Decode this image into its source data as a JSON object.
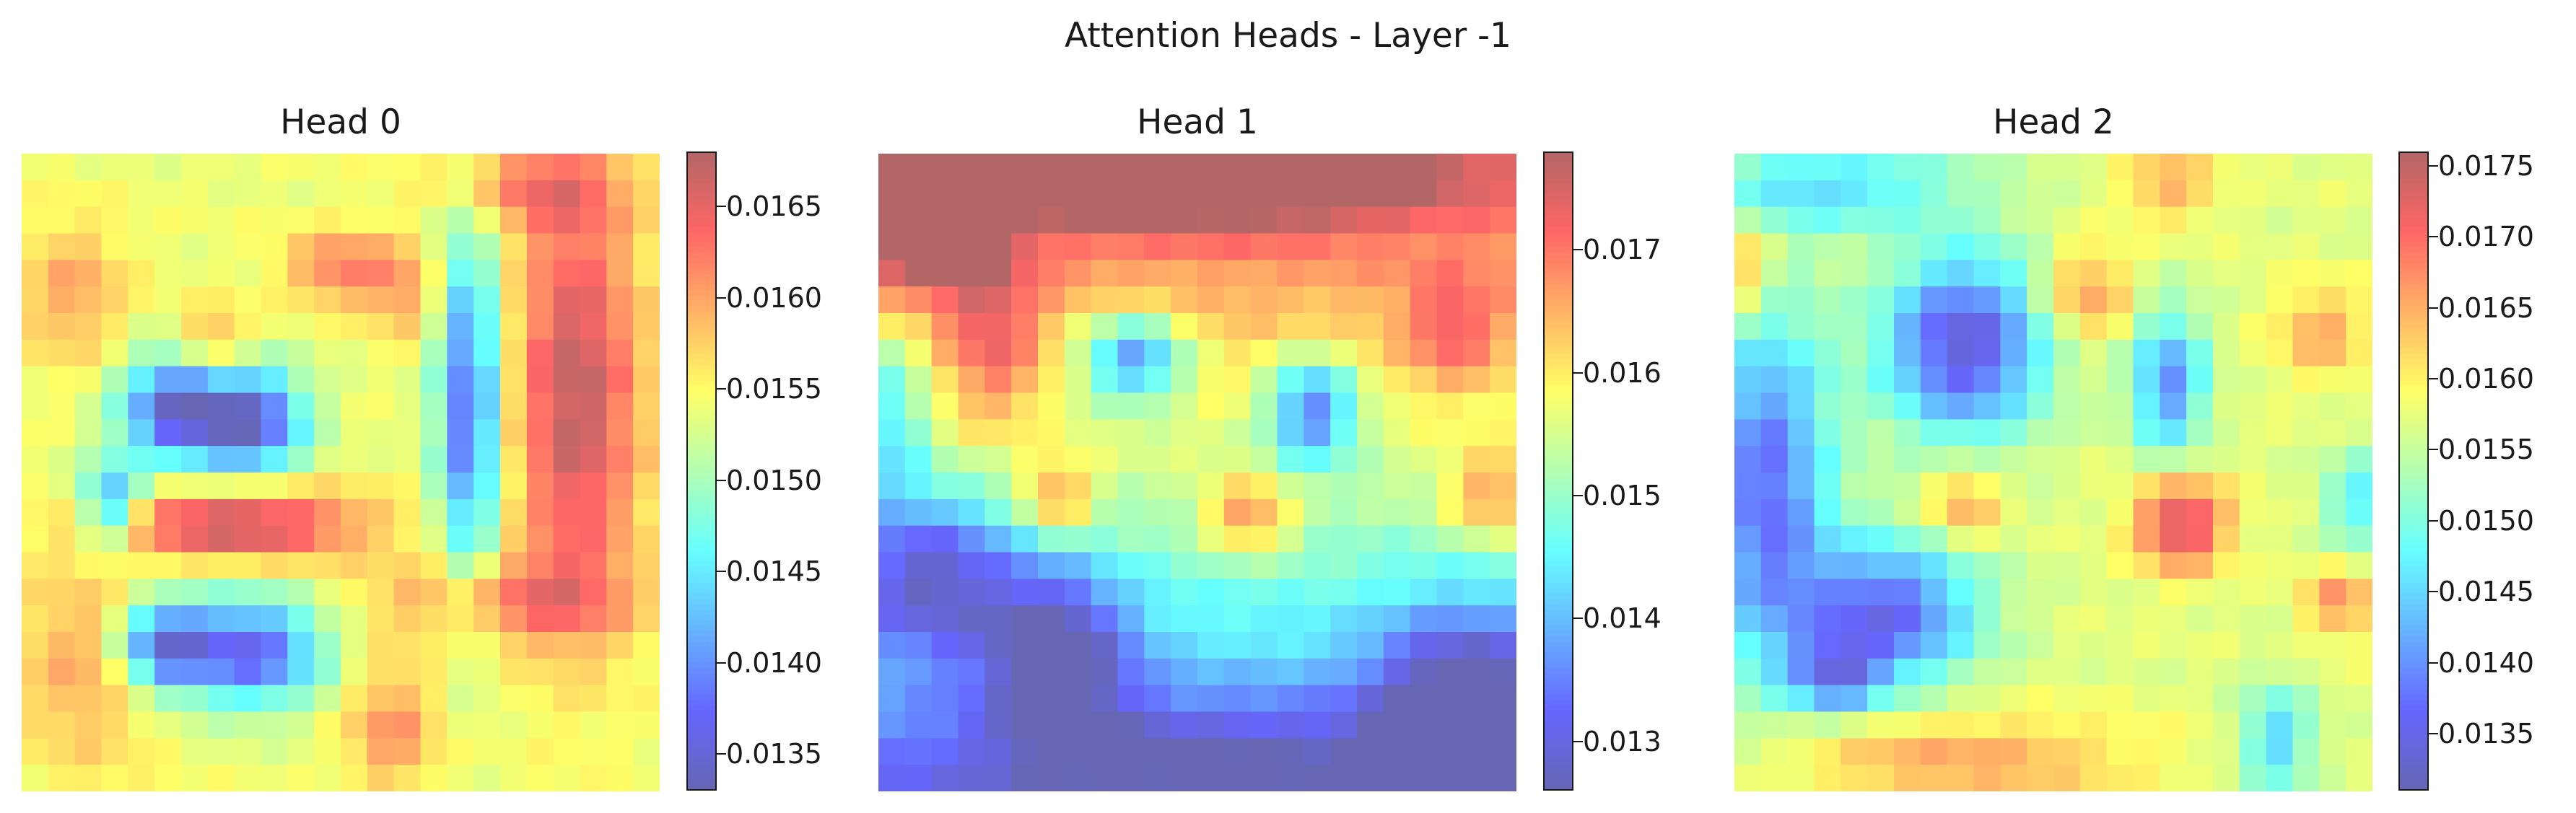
{
  "figure": {
    "suptitle": "Attention Heads - Layer -1"
  },
  "chart_data": [
    {
      "type": "heatmap",
      "title": "Head 0",
      "grid_size": [
        24,
        24
      ],
      "colormap": "jet",
      "alpha": 0.6,
      "axis_visible": false,
      "colorbar": {
        "vmin": 0.0133,
        "vmax": 0.0168,
        "ticks": [
          0.0135,
          0.014,
          0.0145,
          0.015,
          0.0155,
          0.016,
          0.0165
        ],
        "tick_labels": [
          "0.0135",
          "0.0140",
          "0.0145",
          "0.0150",
          "0.0155",
          "0.0160",
          "0.0165"
        ]
      },
      "blobs": [
        {
          "cx": 0.24,
          "cy": 0.4,
          "sx": 0.06,
          "sy": 0.06,
          "a": 0.95
        },
        {
          "cx": 0.36,
          "cy": 0.42,
          "sx": 0.06,
          "sy": 0.06,
          "a": 0.95
        },
        {
          "cx": 0.36,
          "cy": 0.78,
          "sx": 0.08,
          "sy": 0.06,
          "a": 0.9
        },
        {
          "cx": 0.22,
          "cy": 0.77,
          "sx": 0.05,
          "sy": 0.05,
          "a": 0.85
        },
        {
          "cx": 0.7,
          "cy": 0.4,
          "sx": 0.035,
          "sy": 0.2,
          "a": 0.85
        },
        {
          "cx": 0.14,
          "cy": 0.55,
          "sx": 0.035,
          "sy": 0.05,
          "a": 0.7
        },
        {
          "cx": 0.08,
          "cy": 0.22,
          "sx": 0.06,
          "sy": 0.08,
          "a": -0.3
        },
        {
          "cx": 0.6,
          "cy": 0.22,
          "sx": 0.04,
          "sy": 0.05,
          "a": -0.3
        }
      ],
      "hots": [
        {
          "cx": 0.34,
          "cy": 0.58,
          "sx": 0.14,
          "sy": 0.04,
          "a": 1.0
        },
        {
          "cx": 0.87,
          "cy": 0.38,
          "sx": 0.07,
          "sy": 0.24,
          "a": 0.95
        },
        {
          "cx": 0.75,
          "cy": 0.7,
          "sx": 0.14,
          "sy": 0.05,
          "a": 0.55
        },
        {
          "cx": 0.5,
          "cy": 0.18,
          "sx": 0.06,
          "sy": 0.04,
          "a": 0.6
        },
        {
          "cx": 0.3,
          "cy": 0.3,
          "sx": 0.04,
          "sy": 0.04,
          "a": 0.55
        },
        {
          "cx": 0.8,
          "cy": 0.05,
          "sx": 0.1,
          "sy": 0.05,
          "a": 0.5
        },
        {
          "cx": 0.1,
          "cy": 0.8,
          "sx": 0.08,
          "sy": 0.12,
          "a": 0.4
        },
        {
          "cx": 0.58,
          "cy": 0.9,
          "sx": 0.05,
          "sy": 0.07,
          "a": 0.5
        }
      ],
      "base": 0.6
    },
    {
      "type": "heatmap",
      "title": "Head 1",
      "grid_size": [
        24,
        24
      ],
      "colormap": "jet",
      "alpha": 0.6,
      "axis_visible": false,
      "colorbar": {
        "vmin": 0.0126,
        "vmax": 0.0178,
        "ticks": [
          0.013,
          0.014,
          0.015,
          0.016,
          0.017
        ],
        "tick_labels": [
          "0.013",
          "0.014",
          "0.015",
          "0.016",
          "0.017"
        ]
      },
      "blobs": [
        {
          "cx": 0.4,
          "cy": 0.32,
          "sx": 0.06,
          "sy": 0.05,
          "a": 0.8
        },
        {
          "cx": 0.68,
          "cy": 0.4,
          "sx": 0.05,
          "sy": 0.06,
          "a": 0.8
        },
        {
          "cx": 0.28,
          "cy": 0.78,
          "sx": 0.08,
          "sy": 0.09,
          "a": 0.75
        },
        {
          "cx": 0.08,
          "cy": 0.66,
          "sx": 0.1,
          "sy": 0.09,
          "a": 0.7
        },
        {
          "cx": 0.92,
          "cy": 0.86,
          "sx": 0.1,
          "sy": 0.1,
          "a": 0.75
        },
        {
          "cx": 0.5,
          "cy": 0.95,
          "sx": 0.3,
          "sy": 0.07,
          "a": 0.4
        },
        {
          "cx": 0.02,
          "cy": 0.4,
          "sx": 0.04,
          "sy": 0.1,
          "a": 0.45
        }
      ],
      "hots": [
        {
          "cx": 0.08,
          "cy": 0.14,
          "sx": 0.08,
          "sy": 0.06,
          "a": 0.8
        },
        {
          "cx": 0.4,
          "cy": 0.05,
          "sx": 0.2,
          "sy": 0.05,
          "a": 0.7
        },
        {
          "cx": 0.7,
          "cy": 0.04,
          "sx": 0.12,
          "sy": 0.04,
          "a": 0.75
        },
        {
          "cx": 0.28,
          "cy": 0.54,
          "sx": 0.04,
          "sy": 0.04,
          "a": 0.7
        },
        {
          "cx": 0.58,
          "cy": 0.57,
          "sx": 0.05,
          "sy": 0.04,
          "a": 0.75
        },
        {
          "cx": 0.96,
          "cy": 0.54,
          "sx": 0.05,
          "sy": 0.05,
          "a": 0.65
        },
        {
          "cx": 0.9,
          "cy": 0.28,
          "sx": 0.05,
          "sy": 0.06,
          "a": 0.5
        },
        {
          "cx": 0.18,
          "cy": 0.3,
          "sx": 0.05,
          "sy": 0.1,
          "a": 0.5
        }
      ],
      "vertical_gradient": true,
      "base": 0.7
    },
    {
      "type": "heatmap",
      "title": "Head 2",
      "grid_size": [
        24,
        24
      ],
      "colormap": "jet",
      "alpha": 0.6,
      "axis_visible": false,
      "colorbar": {
        "vmin": 0.0131,
        "vmax": 0.0176,
        "ticks": [
          0.0135,
          0.014,
          0.0145,
          0.015,
          0.0155,
          0.016,
          0.0165,
          0.017,
          0.0175
        ],
        "tick_labels": [
          "0.0135",
          "0.0140",
          "0.0145",
          "0.0150",
          "0.0155",
          "0.0160",
          "0.0165",
          "0.0170",
          "0.0175"
        ]
      },
      "blobs": [
        {
          "cx": 0.36,
          "cy": 0.3,
          "sx": 0.09,
          "sy": 0.1,
          "a": 0.95
        },
        {
          "cx": 0.05,
          "cy": 0.52,
          "sx": 0.07,
          "sy": 0.2,
          "a": 0.8
        },
        {
          "cx": 0.24,
          "cy": 0.72,
          "sx": 0.1,
          "sy": 0.08,
          "a": 0.85
        },
        {
          "cx": 0.68,
          "cy": 0.36,
          "sx": 0.04,
          "sy": 0.08,
          "a": 0.7
        },
        {
          "cx": 0.16,
          "cy": 0.82,
          "sx": 0.05,
          "sy": 0.04,
          "a": 0.6
        },
        {
          "cx": 0.15,
          "cy": 0.05,
          "sx": 0.15,
          "sy": 0.05,
          "a": 0.45
        },
        {
          "cx": 0.85,
          "cy": 0.92,
          "sx": 0.04,
          "sy": 0.06,
          "a": 0.5
        },
        {
          "cx": 0.98,
          "cy": 0.55,
          "sx": 0.04,
          "sy": 0.06,
          "a": 0.4
        }
      ],
      "hots": [
        {
          "cx": 0.7,
          "cy": 0.58,
          "sx": 0.05,
          "sy": 0.05,
          "a": 1.0
        },
        {
          "cx": 0.55,
          "cy": 0.22,
          "sx": 0.05,
          "sy": 0.05,
          "a": 0.55
        },
        {
          "cx": 0.36,
          "cy": 0.55,
          "sx": 0.04,
          "sy": 0.04,
          "a": 0.55
        },
        {
          "cx": 0.92,
          "cy": 0.28,
          "sx": 0.05,
          "sy": 0.05,
          "a": 0.45
        },
        {
          "cx": 0.95,
          "cy": 0.7,
          "sx": 0.04,
          "sy": 0.04,
          "a": 0.55
        },
        {
          "cx": 0.02,
          "cy": 0.18,
          "sx": 0.03,
          "sy": 0.06,
          "a": 0.5
        },
        {
          "cx": 0.35,
          "cy": 0.95,
          "sx": 0.2,
          "sy": 0.05,
          "a": 0.45
        },
        {
          "cx": 0.68,
          "cy": 0.05,
          "sx": 0.05,
          "sy": 0.04,
          "a": 0.45
        }
      ],
      "base": 0.58
    }
  ]
}
